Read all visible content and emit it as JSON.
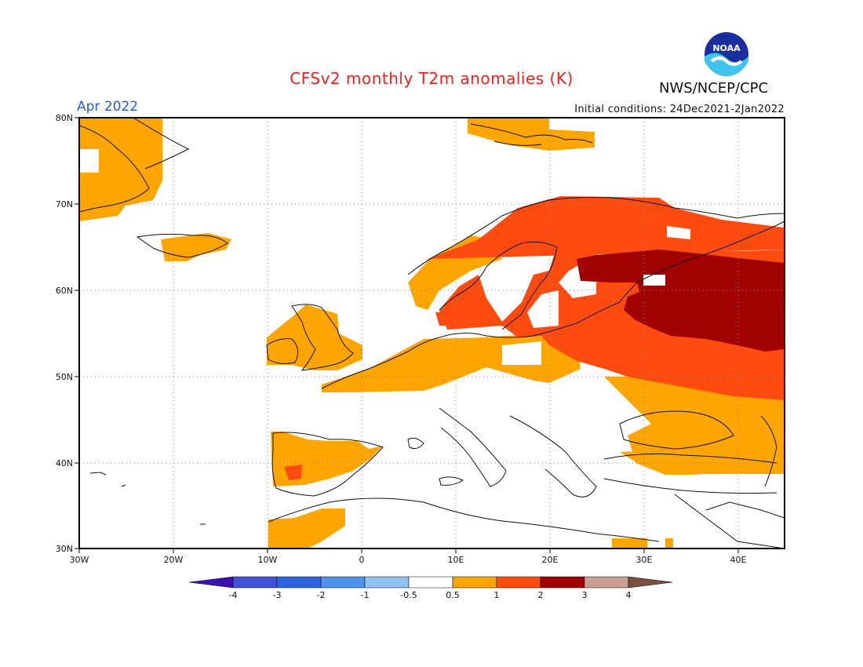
{
  "header": {
    "title": "CFSv2 monthly T2m anomalies (K)",
    "agency": "NWS/NCEP/CPC",
    "month": "Apr 2022",
    "initial_conditions": "Initial conditions: 24Dec2021-2Jan2022",
    "logo_text": "NOAA"
  },
  "axes": {
    "lat_labels": [
      "80N",
      "70N",
      "60N",
      "50N",
      "40N",
      "30N"
    ],
    "lon_labels": [
      "30W",
      "20W",
      "10W",
      "0",
      "10E",
      "20E",
      "30E",
      "40E"
    ]
  },
  "colorbar": {
    "levels": [
      "-4",
      "-3",
      "-2",
      "-1",
      "-0.5",
      "0.5",
      "1",
      "2",
      "3",
      "4"
    ],
    "colors": [
      "#3a10b0",
      "#3f52d8",
      "#2e63e0",
      "#4d93ea",
      "#8fc1f2",
      "#ffffff",
      "#ffa500",
      "#ff4a10",
      "#a00000",
      "#c8a092",
      "#7a5042"
    ]
  },
  "legend_colors": {
    "anomaly_0_5_to_1": "#ffa500",
    "anomaly_1_to_2": "#ff4a10",
    "anomaly_2_to_3": "#a00000"
  }
}
